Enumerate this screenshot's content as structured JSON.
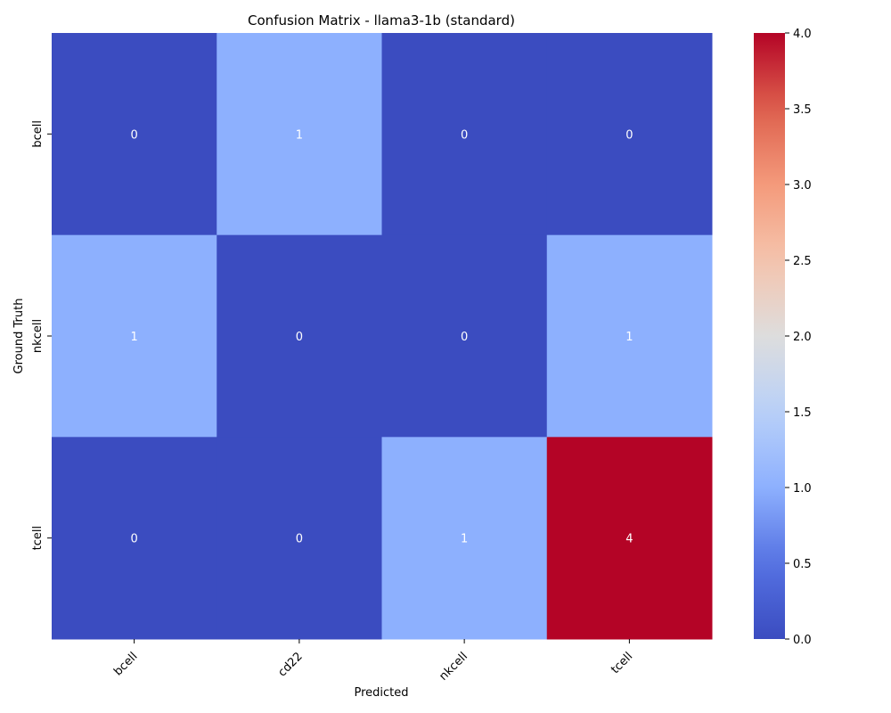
{
  "chart_data": {
    "type": "heatmap",
    "title": "Confusion Matrix - llama3-1b (standard)",
    "xlabel": "Predicted",
    "ylabel": "Ground Truth",
    "x_categories": [
      "bcell",
      "cd22",
      "nkcell",
      "tcell"
    ],
    "y_categories": [
      "bcell",
      "nkcell",
      "tcell"
    ],
    "values": [
      [
        0,
        1,
        0,
        0
      ],
      [
        1,
        0,
        0,
        1
      ],
      [
        0,
        0,
        1,
        4
      ]
    ],
    "colormap": "coolwarm",
    "colorbar_range": [
      0,
      4
    ],
    "colorbar_ticks": [
      "0.0",
      "0.5",
      "1.0",
      "1.5",
      "2.0",
      "2.5",
      "3.0",
      "3.5",
      "4.0"
    ],
    "colors": {
      "low": "#3b4cc0",
      "mid": "#dddddd",
      "high": "#b40426",
      "cell_text": "#ffffff"
    }
  }
}
